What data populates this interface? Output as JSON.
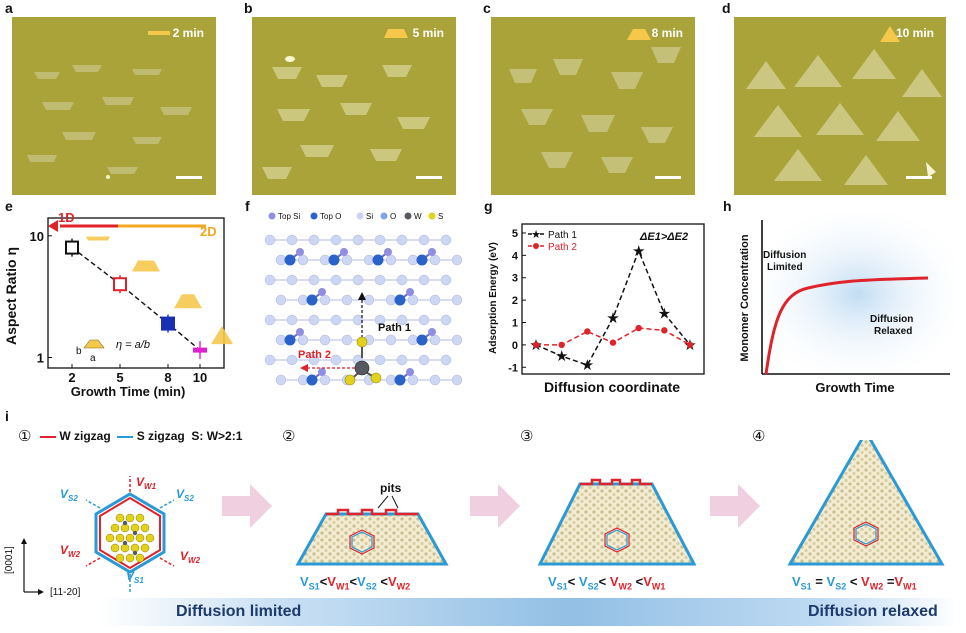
{
  "panels": {
    "a": {
      "label": "a",
      "time": "2 min"
    },
    "b": {
      "label": "b",
      "time": "5 min"
    },
    "c": {
      "label": "c",
      "time": "8 min"
    },
    "d": {
      "label": "d",
      "time": "10 min"
    },
    "e": {
      "label": "e"
    },
    "f": {
      "label": "f"
    },
    "g": {
      "label": "g"
    },
    "h": {
      "label": "h"
    },
    "i": {
      "label": "i"
    }
  },
  "colors": {
    "film": "#a9a33a",
    "flake": "#ccc982",
    "w_edge": "#e0222a",
    "s_edge": "#2a9ad6",
    "indicator": "#f5c84c"
  },
  "chart_data": [
    {
      "panel": "e",
      "type": "scatter",
      "xlabel": "Growth Time (min)",
      "ylabel": "Aspect Ratio η",
      "x_ticks": [
        "2",
        "5",
        "8",
        "10"
      ],
      "y_ticks": [
        "1",
        "10"
      ],
      "y_scale": "log",
      "x": [
        2,
        5,
        8,
        10
      ],
      "values": [
        8.0,
        4.0,
        1.9,
        1.15
      ],
      "box_colors": [
        "#111111",
        "#e0222a",
        "#1a2fb5",
        "#e020d0"
      ],
      "arrow_left_label": "1D",
      "arrow_right_label": "2D",
      "eta_def": "η = a/b",
      "dim_a": "a",
      "dim_b": "b"
    },
    {
      "panel": "g",
      "type": "line",
      "xlabel": "Diffusion coordinate",
      "ylabel": "Adsorption Energy (eV)",
      "ylim": [
        -1,
        5
      ],
      "y_ticks": [
        "-1",
        "0",
        "1",
        "2",
        "3",
        "4",
        "5"
      ],
      "annotation": "ΔE1>ΔE2",
      "series": [
        {
          "name": "Path 1",
          "color": "#111111",
          "values": [
            0,
            -0.5,
            -0.9,
            1.2,
            4.2,
            1.4,
            0
          ]
        },
        {
          "name": "Path 2",
          "color": "#e0222a",
          "values": [
            0,
            0,
            0.6,
            0.1,
            0.75,
            0.65,
            0
          ]
        }
      ]
    },
    {
      "panel": "h",
      "type": "line",
      "xlabel": "Growth Time",
      "ylabel": "Monomer Concentration",
      "region_labels": [
        "Diffusion Limited",
        "Diffusion Relaxed"
      ]
    }
  ],
  "structure_f": {
    "legend": [
      "Top Si",
      "Top O",
      "Si",
      "O",
      "W",
      "S"
    ],
    "path1": "Path 1",
    "path2": "Path 2"
  },
  "schematic_i": {
    "legend_w": "W zigzag",
    "legend_s": "S zigzag",
    "legend_ratio": "S: W>2:1",
    "stages": [
      "①",
      "②",
      "③",
      "④"
    ],
    "pits": "pits",
    "axis_y": "[0001]",
    "axis_x": "[11-20]",
    "left_label": "Diffusion limited",
    "right_label": "Diffusion relaxed",
    "velocities": [
      "V_S2",
      "V_W1",
      "V_S2",
      "V_W2",
      "V_W2",
      "V_S1"
    ]
  }
}
